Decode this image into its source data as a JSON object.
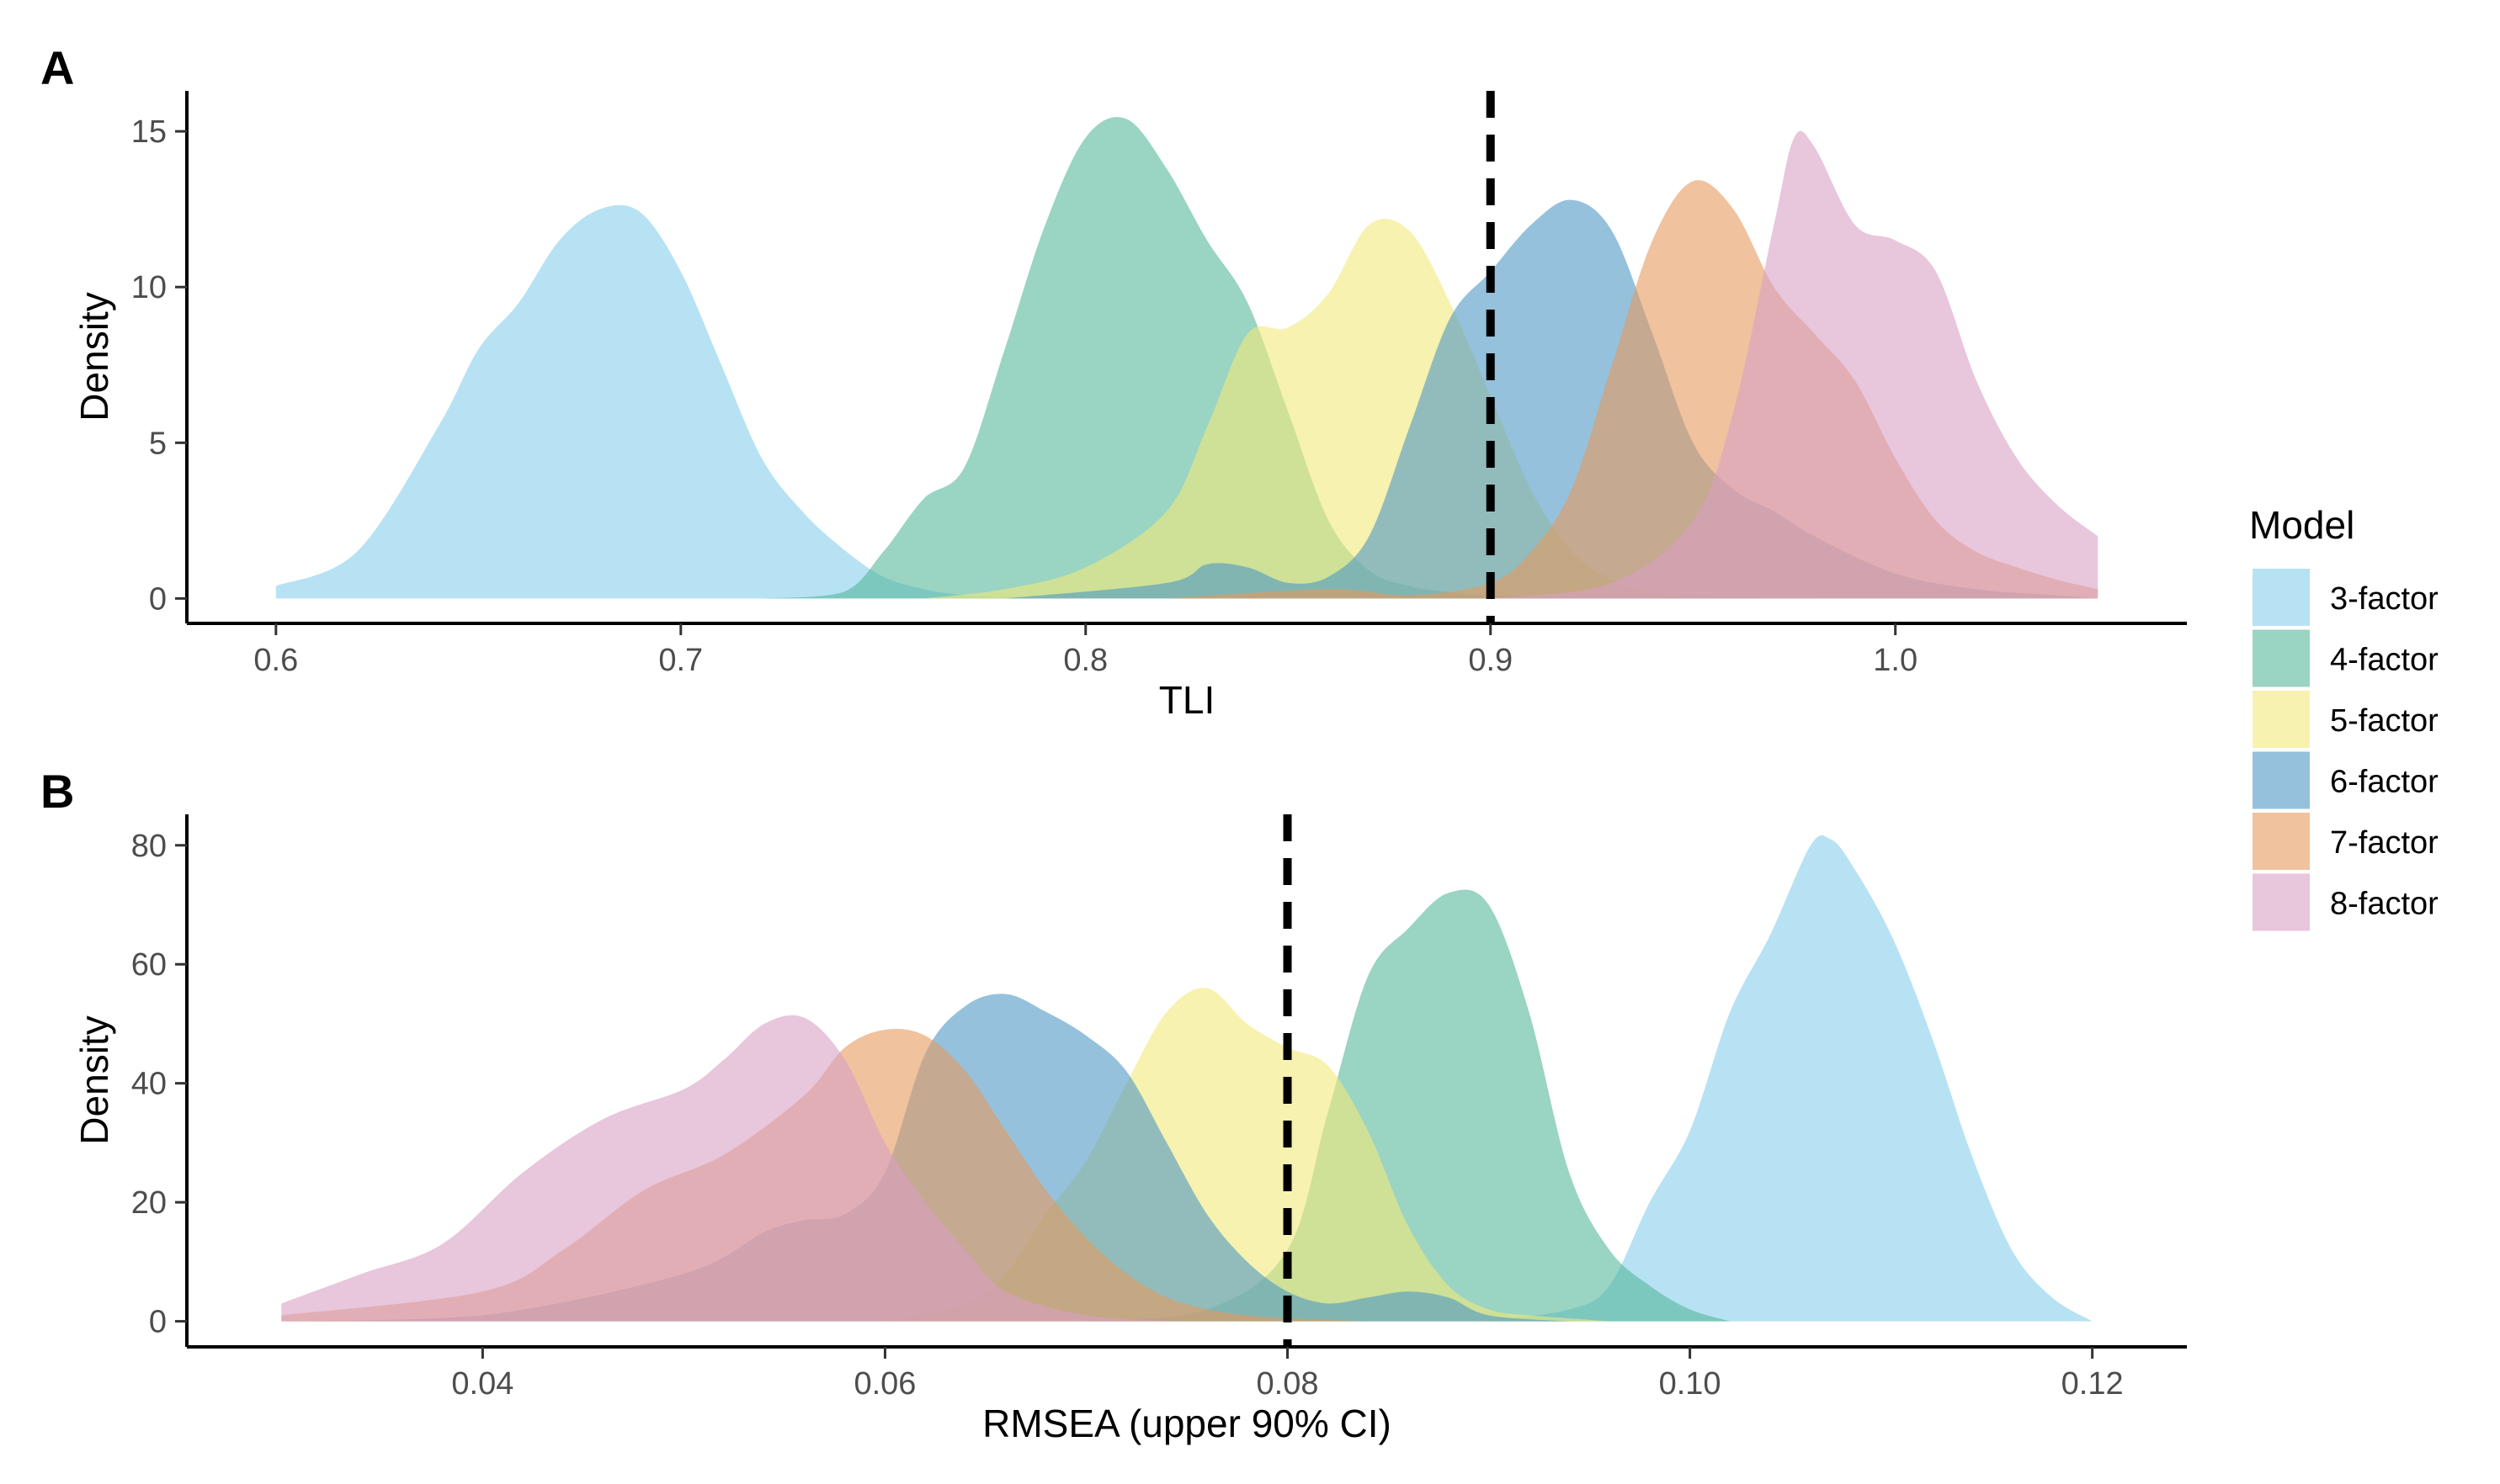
{
  "chart_data": [
    {
      "type": "area",
      "panel_label": "A",
      "xlabel": "TLI",
      "ylabel": "Density",
      "xlim": [
        0.578,
        1.072
      ],
      "ylim": [
        -0.8,
        16.3
      ],
      "xticks": [
        0.6,
        0.7,
        0.8,
        0.9,
        1.0
      ],
      "xtick_labels": [
        "0.6",
        "0.7",
        "0.8",
        "0.9",
        "1.0"
      ],
      "yticks": [
        0,
        5,
        10,
        15
      ],
      "ytick_labels": [
        "0",
        "5",
        "10",
        "15"
      ],
      "reference_line": {
        "x": 0.9,
        "style": "dashed"
      },
      "grid": false,
      "series": [
        {
          "name": "3-factor",
          "x": [
            0.6,
            0.62,
            0.64,
            0.65,
            0.66,
            0.67,
            0.68,
            0.69,
            0.7,
            0.71,
            0.72,
            0.73,
            0.74,
            0.75,
            0.76,
            0.77,
            0.78,
            0.8,
            0.82
          ],
          "y": [
            0.4,
            1.5,
            5.5,
            8.0,
            9.5,
            11.5,
            12.5,
            12.4,
            10.5,
            7.5,
            4.5,
            2.8,
            1.6,
            0.7,
            0.3,
            0.1,
            0.05,
            0,
            0
          ]
        },
        {
          "name": "4-factor",
          "x": [
            0.72,
            0.74,
            0.75,
            0.76,
            0.77,
            0.78,
            0.79,
            0.8,
            0.81,
            0.82,
            0.83,
            0.84,
            0.85,
            0.86,
            0.87,
            0.88,
            0.89,
            0.9,
            0.92,
            0.94,
            0.96,
            0.98
          ],
          "y": [
            0,
            0.2,
            1.5,
            3.2,
            4.2,
            8.0,
            12.0,
            14.8,
            15.4,
            13.8,
            11.5,
            9.5,
            6.0,
            2.5,
            0.9,
            0.4,
            0.2,
            0.1,
            0.05,
            0.05,
            0.02,
            0
          ]
        },
        {
          "name": "5-factor",
          "x": [
            0.76,
            0.78,
            0.8,
            0.82,
            0.83,
            0.84,
            0.85,
            0.86,
            0.87,
            0.88,
            0.89,
            0.9,
            0.91,
            0.92,
            0.93,
            0.94,
            0.96,
            0.98,
            1.0
          ],
          "y": [
            0,
            0.3,
            1.0,
            2.8,
            5.5,
            8.5,
            8.7,
            9.8,
            12.0,
            11.8,
            9.5,
            6.5,
            3.5,
            1.5,
            0.6,
            0.2,
            0.05,
            0,
            0
          ]
        },
        {
          "name": "6-factor",
          "x": [
            0.78,
            0.82,
            0.83,
            0.84,
            0.85,
            0.86,
            0.87,
            0.88,
            0.89,
            0.9,
            0.91,
            0.92,
            0.93,
            0.94,
            0.95,
            0.96,
            0.97,
            0.98,
            1.0,
            1.02,
            1.04,
            1.05
          ],
          "y": [
            0,
            0.5,
            1.1,
            1.0,
            0.5,
            0.7,
            2.0,
            5.5,
            9.0,
            10.5,
            12.0,
            12.8,
            11.8,
            8.5,
            5.0,
            3.5,
            2.8,
            2.0,
            0.8,
            0.3,
            0.1,
            0
          ]
        },
        {
          "name": "7-factor",
          "x": [
            0.82,
            0.86,
            0.88,
            0.9,
            0.91,
            0.92,
            0.93,
            0.94,
            0.95,
            0.96,
            0.97,
            0.98,
            0.99,
            1.0,
            1.01,
            1.02,
            1.03,
            1.04,
            1.05
          ],
          "y": [
            0,
            0.3,
            0.1,
            0.5,
            1.5,
            3.5,
            7.5,
            11.5,
            13.4,
            12.5,
            10.0,
            8.5,
            7.0,
            4.5,
            2.5,
            1.5,
            1.0,
            0.6,
            0.3
          ]
        },
        {
          "name": "8-factor",
          "x": [
            0.9,
            0.93,
            0.95,
            0.96,
            0.97,
            0.975,
            0.98,
            0.99,
            1.0,
            1.01,
            1.02,
            1.03,
            1.04,
            1.05
          ],
          "y": [
            0,
            0.5,
            2.5,
            6.0,
            12.0,
            14.8,
            14.5,
            12.0,
            11.5,
            10.5,
            7.0,
            4.5,
            3.0,
            2.0
          ]
        }
      ]
    },
    {
      "type": "area",
      "panel_label": "B",
      "xlabel": "RMSEA (upper 90% CI)",
      "ylabel": "Density",
      "xlim": [
        0.0253,
        0.1247
      ],
      "ylim": [
        -4.3,
        85.2
      ],
      "xticks": [
        0.04,
        0.06,
        0.08,
        0.1,
        0.12
      ],
      "xtick_labels": [
        "0.04",
        "0.06",
        "0.08",
        "0.10",
        "0.12"
      ],
      "yticks": [
        0,
        20,
        40,
        60,
        80
      ],
      "ytick_labels": [
        "0",
        "20",
        "40",
        "60",
        "80"
      ],
      "reference_line": {
        "x": 0.08,
        "style": "dashed"
      },
      "grid": false,
      "series": [
        {
          "name": "3-factor",
          "x": [
            0.09,
            0.094,
            0.096,
            0.098,
            0.1,
            0.102,
            0.104,
            0.106,
            0.107,
            0.108,
            0.11,
            0.112,
            0.114,
            0.116,
            0.118,
            0.12
          ],
          "y": [
            0,
            2,
            6,
            20,
            32,
            52,
            65,
            80,
            81,
            77,
            65,
            48,
            28,
            12,
            4,
            0
          ]
        },
        {
          "name": "4-factor",
          "x": [
            0.07,
            0.076,
            0.08,
            0.082,
            0.084,
            0.086,
            0.088,
            0.09,
            0.092,
            0.094,
            0.096,
            0.098,
            0.1,
            0.102
          ],
          "y": [
            0,
            2,
            12,
            35,
            58,
            66,
            72,
            70,
            52,
            25,
            12,
            6,
            2,
            0
          ]
        },
        {
          "name": "5-factor",
          "x": [
            0.06,
            0.064,
            0.066,
            0.068,
            0.07,
            0.072,
            0.074,
            0.076,
            0.078,
            0.08,
            0.082,
            0.084,
            0.086,
            0.088,
            0.09,
            0.092,
            0.094,
            0.096
          ],
          "y": [
            0,
            3,
            8,
            18,
            27,
            40,
            52,
            56,
            50,
            46,
            43,
            32,
            16,
            6,
            2,
            1,
            0.5,
            0
          ]
        },
        {
          "name": "6-factor",
          "x": [
            0.03,
            0.04,
            0.05,
            0.054,
            0.056,
            0.058,
            0.06,
            0.062,
            0.064,
            0.066,
            0.068,
            0.07,
            0.072,
            0.074,
            0.076,
            0.078,
            0.08,
            0.082,
            0.084,
            0.086,
            0.088,
            0.09,
            0.094
          ],
          "y": [
            0,
            1,
            8,
            15,
            17,
            18,
            25,
            45,
            53,
            55,
            52,
            48,
            42,
            30,
            18,
            10,
            5,
            3,
            4,
            5,
            4,
            1,
            0
          ]
        },
        {
          "name": "7-factor",
          "x": [
            0.03,
            0.04,
            0.044,
            0.048,
            0.052,
            0.056,
            0.058,
            0.06,
            0.062,
            0.064,
            0.066,
            0.068,
            0.07,
            0.072,
            0.074,
            0.076,
            0.078,
            0.08,
            0.084
          ],
          "y": [
            1,
            5,
            12,
            22,
            28,
            38,
            46,
            49,
            48,
            42,
            32,
            22,
            14,
            8,
            4,
            2,
            1,
            0.5,
            0
          ]
        },
        {
          "name": "8-factor",
          "x": [
            0.03,
            0.034,
            0.038,
            0.042,
            0.046,
            0.05,
            0.052,
            0.054,
            0.056,
            0.058,
            0.06,
            0.062,
            0.064,
            0.066,
            0.07,
            0.075
          ],
          "y": [
            3,
            8,
            13,
            25,
            34,
            39,
            44,
            50,
            51,
            44,
            30,
            20,
            12,
            5,
            1,
            0
          ]
        }
      ]
    }
  ],
  "legend": {
    "title": "Model",
    "placement": "right",
    "items": [
      {
        "label": "3-factor",
        "color": "#87CEEB"
      },
      {
        "label": "4-factor",
        "color": "#56B89B"
      },
      {
        "label": "5-factor",
        "color": "#F2EA7A"
      },
      {
        "label": "6-factor",
        "color": "#4F97C4"
      },
      {
        "label": "7-factor",
        "color": "#E69A5E"
      },
      {
        "label": "8-factor",
        "color": "#D9A0C4"
      }
    ]
  }
}
